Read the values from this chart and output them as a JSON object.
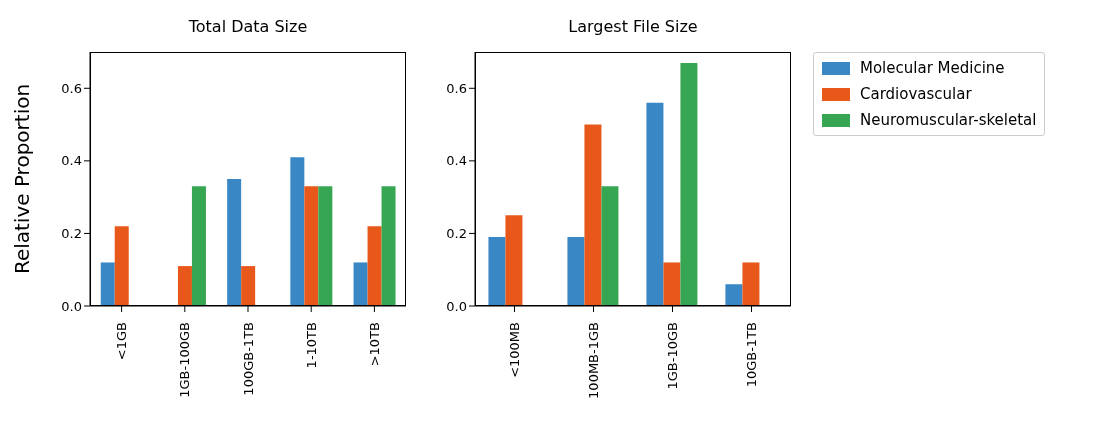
{
  "chart_data": [
    {
      "type": "bar",
      "title": "Total Data Size",
      "ylabel": "Relative Proportion",
      "categories": [
        "<1GB",
        "1GB-100GB",
        "100GB-1TB",
        "1-10TB",
        ">10TB"
      ],
      "series": [
        {
          "color": "#3a87c6",
          "values": [
            0.12,
            0,
            0.35,
            0.41,
            0.12
          ]
        },
        {
          "color": "#e8581a",
          "values": [
            0.22,
            0.11,
            0.11,
            0.33,
            0.22
          ]
        },
        {
          "color": "#36a653",
          "values": [
            0,
            0.33,
            0,
            0.33,
            0.33
          ]
        }
      ],
      "ylim": [
        0,
        0.7
      ],
      "yticks": [
        {
          "value": 0,
          "label": "0.0"
        },
        {
          "value": 0.2,
          "label": "0.2"
        },
        {
          "value": 0.4,
          "label": "0.4"
        },
        {
          "value": 0.6,
          "label": "0.6"
        }
      ],
      "grid": false,
      "legend": false
    },
    {
      "type": "bar",
      "title": "Largest File Size",
      "categories": [
        "<100MB",
        "100MB-1GB",
        "1GB-10GB",
        "10GB-1TB"
      ],
      "series": [
        {
          "name": "Molecular Medicine",
          "color": "#3a87c6",
          "values": [
            0.19,
            0.19,
            0.56,
            0.06
          ]
        },
        {
          "name": "Cardiovascular",
          "color": "#e8581a",
          "values": [
            0.25,
            0.5,
            0.12,
            0.12
          ]
        },
        {
          "name": "Neuromuscular-skeletal",
          "color": "#36a653",
          "values": [
            0,
            0.33,
            0.67,
            0
          ]
        }
      ],
      "ylim": [
        0,
        0.7
      ],
      "yticks": [
        {
          "value": 0,
          "label": "0.0"
        },
        {
          "value": 0.2,
          "label": "0.2"
        },
        {
          "value": 0.4,
          "label": "0.4"
        },
        {
          "value": 0.6,
          "label": "0.6"
        }
      ],
      "grid": false,
      "legend": "right"
    }
  ]
}
